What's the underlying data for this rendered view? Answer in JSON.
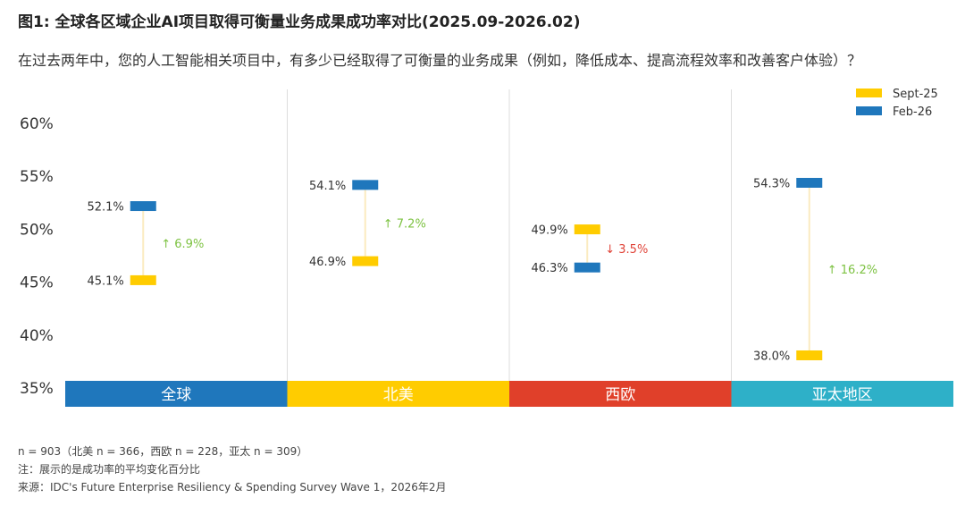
{
  "title": "图1: 全球各区域企业AI项目取得可衡量业务成果成功率对比(2025.09-2026.02)",
  "subtitle": "在过去两年中，您的人工智能相关项目中，有多少已经取得了可衡量的业务成果（例如，降低成本、提高流程效率和改善客户体验）？",
  "footnotes": {
    "sample": "n = 903（北美 n = 366，西欧 n = 228，亚太 n = 309）",
    "note": "注：展示的是成功率的平均变化百分比",
    "source": "来源：IDC's Future Enterprise Resiliency & Spending Survey Wave 1，2026年2月"
  },
  "colors": {
    "sept": "#FFCC00",
    "feb": "#1F77BC",
    "up": "#7DC242",
    "down": "#E0453A",
    "connector": "#FBEBC0",
    "grid": "#DDDDDD",
    "region_bands": [
      "#1F77BC",
      "#FFCC00",
      "#E0402A",
      "#2EB0C8"
    ]
  },
  "chart_data": {
    "type": "dumbbell",
    "ylim": [
      35,
      62
    ],
    "yticks": [
      "35%",
      "40%",
      "45%",
      "50%",
      "55%",
      "60%"
    ],
    "ytick_values": [
      35,
      40,
      45,
      50,
      55,
      60
    ],
    "grid": "vertical separators",
    "legend_position": "top-right",
    "categories": [
      "全球",
      "北美",
      "西欧",
      "亚太地区"
    ],
    "series": [
      {
        "name": "Sept-25",
        "values": [
          45.1,
          46.9,
          49.9,
          38.0
        ],
        "labels": [
          "45.1%",
          "46.9%",
          "49.9%",
          "38.0%"
        ]
      },
      {
        "name": "Feb-26",
        "values": [
          52.1,
          54.1,
          46.3,
          54.3
        ],
        "labels": [
          "52.1%",
          "54.1%",
          "46.3%",
          "54.3%"
        ]
      }
    ],
    "changes": [
      {
        "label": "↑ 6.9%",
        "direction": "up"
      },
      {
        "label": "↑ 7.2%",
        "direction": "up"
      },
      {
        "label": "↓ 3.5%",
        "direction": "down"
      },
      {
        "label": "↑ 16.2%",
        "direction": "up"
      }
    ]
  }
}
